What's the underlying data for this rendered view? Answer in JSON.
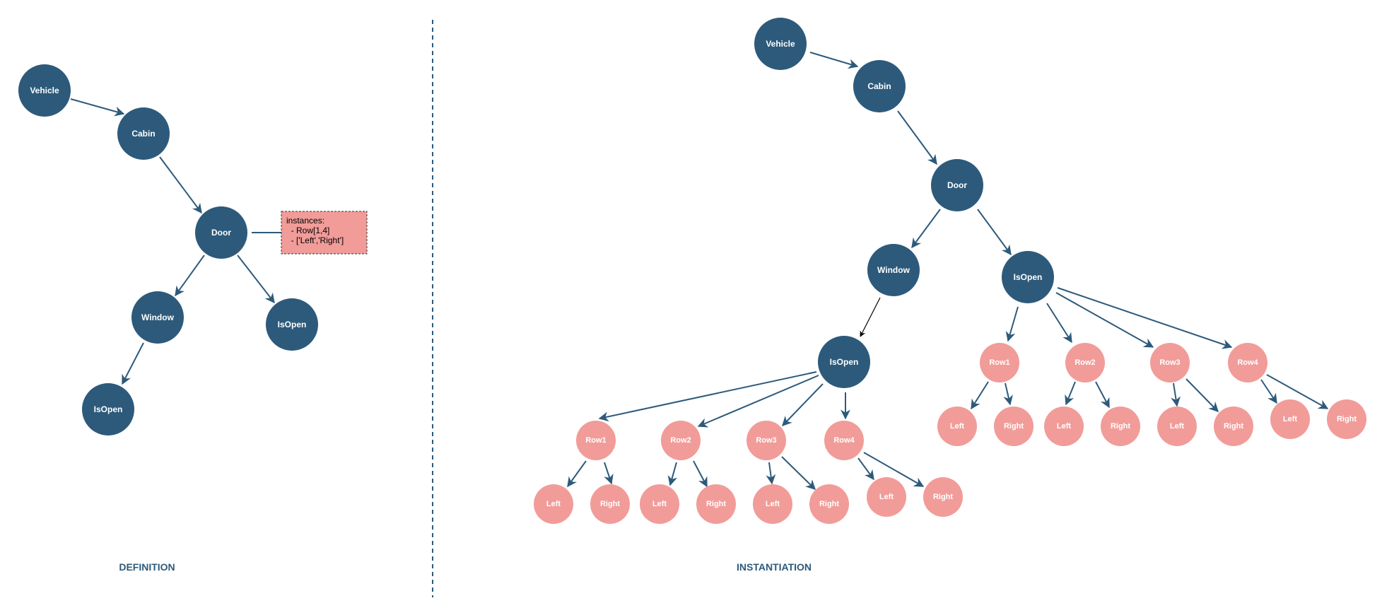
{
  "colors": {
    "primary": "#2d5a7b",
    "secondary": "#f19c99",
    "background": "#ffffff"
  },
  "definition": {
    "title": "DEFINITION",
    "nodes": {
      "vehicle": "Vehicle",
      "cabin": "Cabin",
      "door": "Door",
      "window": "Window",
      "door_isopen": "IsOpen",
      "window_isopen": "IsOpen"
    },
    "note": {
      "lines": [
        "instances:",
        "  - Row[1,4]",
        "  - ['Left','Right']"
      ]
    }
  },
  "instantiation": {
    "title": "INSTANTIATION",
    "nodes": {
      "vehicle": "Vehicle",
      "cabin": "Cabin",
      "door": "Door",
      "window": "Window",
      "window_isopen": "IsOpen",
      "door_isopen": "IsOpen"
    },
    "window_rows": [
      {
        "name": "Row1",
        "children": [
          "Left",
          "Right"
        ]
      },
      {
        "name": "Row2",
        "children": [
          "Left",
          "Right"
        ]
      },
      {
        "name": "Row3",
        "children": [
          "Left",
          "Right"
        ]
      },
      {
        "name": "Row4",
        "children": [
          "Left",
          "Right"
        ]
      }
    ],
    "door_rows": [
      {
        "name": "Row1",
        "children": [
          "Left",
          "Right"
        ]
      },
      {
        "name": "Row2",
        "children": [
          "Left",
          "Right"
        ]
      },
      {
        "name": "Row3",
        "children": [
          "Left",
          "Right"
        ]
      },
      {
        "name": "Row4",
        "children": [
          "Left",
          "Right"
        ]
      }
    ]
  }
}
